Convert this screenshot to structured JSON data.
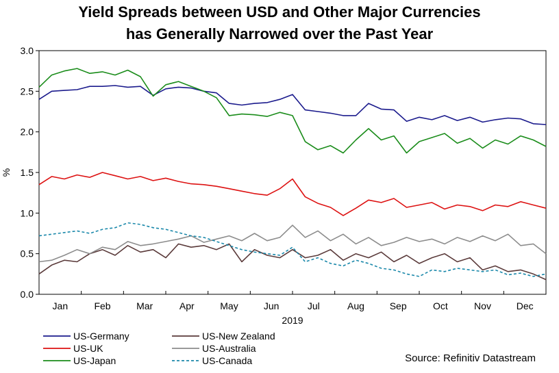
{
  "chart_data": {
    "type": "line",
    "title_line1": "Yield Spreads between USD and Other Major Currencies",
    "title_line2": "has Generally Narrowed over the Past Year",
    "ylabel": "%",
    "xlabel": "2019",
    "ylim": [
      0,
      3.0
    ],
    "yticks": [
      0.0,
      0.5,
      1.0,
      1.5,
      2.0,
      2.5,
      3.0
    ],
    "ytick_labels": [
      "0.0",
      "0.5",
      "1.0",
      "1.5",
      "2.0",
      "2.5",
      "3.0"
    ],
    "months": [
      "Jan",
      "Feb",
      "Mar",
      "Apr",
      "May",
      "Jun",
      "Jul",
      "Aug",
      "Sep",
      "Oct",
      "Nov",
      "Dec"
    ],
    "x_unit": "month index (0 = Jan 1, 12 = Dec 31)",
    "xlim": [
      0,
      12
    ],
    "series": [
      {
        "name": "US-Germany",
        "color": "#1a1a8c",
        "dash": "solid",
        "x": [
          0,
          0.3,
          0.6,
          0.9,
          1.2,
          1.5,
          1.8,
          2.1,
          2.4,
          2.7,
          3.0,
          3.3,
          3.6,
          3.9,
          4.2,
          4.5,
          4.8,
          5.1,
          5.4,
          5.7,
          6.0,
          6.3,
          6.6,
          6.9,
          7.2,
          7.5,
          7.8,
          8.1,
          8.4,
          8.7,
          9.0,
          9.3,
          9.6,
          9.9,
          10.2,
          10.5,
          10.8,
          11.1,
          11.4,
          11.7,
          12.0
        ],
        "y": [
          2.4,
          2.5,
          2.51,
          2.52,
          2.56,
          2.56,
          2.57,
          2.55,
          2.56,
          2.45,
          2.53,
          2.55,
          2.54,
          2.5,
          2.48,
          2.35,
          2.33,
          2.35,
          2.36,
          2.4,
          2.46,
          2.27,
          2.25,
          2.23,
          2.2,
          2.2,
          2.35,
          2.28,
          2.27,
          2.13,
          2.18,
          2.15,
          2.2,
          2.14,
          2.18,
          2.12,
          2.15,
          2.17,
          2.16,
          2.1,
          2.09
        ]
      },
      {
        "name": "US-UK",
        "color": "#dd1111",
        "dash": "solid",
        "x": [
          0,
          0.3,
          0.6,
          0.9,
          1.2,
          1.5,
          1.8,
          2.1,
          2.4,
          2.7,
          3.0,
          3.3,
          3.6,
          3.9,
          4.2,
          4.5,
          4.8,
          5.1,
          5.4,
          5.7,
          6.0,
          6.3,
          6.6,
          6.9,
          7.2,
          7.5,
          7.8,
          8.1,
          8.4,
          8.7,
          9.0,
          9.3,
          9.6,
          9.9,
          10.2,
          10.5,
          10.8,
          11.1,
          11.4,
          11.7,
          12.0
        ],
        "y": [
          1.35,
          1.45,
          1.42,
          1.47,
          1.44,
          1.5,
          1.46,
          1.42,
          1.45,
          1.4,
          1.43,
          1.39,
          1.36,
          1.35,
          1.33,
          1.3,
          1.27,
          1.24,
          1.22,
          1.3,
          1.42,
          1.2,
          1.12,
          1.07,
          0.97,
          1.06,
          1.16,
          1.13,
          1.18,
          1.07,
          1.1,
          1.13,
          1.05,
          1.1,
          1.08,
          1.03,
          1.1,
          1.08,
          1.14,
          1.1,
          1.06
        ]
      },
      {
        "name": "US-Japan",
        "color": "#1a8c1a",
        "dash": "solid",
        "x": [
          0,
          0.3,
          0.6,
          0.9,
          1.2,
          1.5,
          1.8,
          2.1,
          2.4,
          2.7,
          3.0,
          3.3,
          3.6,
          3.9,
          4.2,
          4.5,
          4.8,
          5.1,
          5.4,
          5.7,
          6.0,
          6.3,
          6.6,
          6.9,
          7.2,
          7.5,
          7.8,
          8.1,
          8.4,
          8.7,
          9.0,
          9.3,
          9.6,
          9.9,
          10.2,
          10.5,
          10.8,
          11.1,
          11.4,
          11.7,
          12.0
        ],
        "y": [
          2.55,
          2.7,
          2.75,
          2.78,
          2.72,
          2.74,
          2.7,
          2.76,
          2.68,
          2.44,
          2.58,
          2.62,
          2.56,
          2.5,
          2.42,
          2.2,
          2.22,
          2.21,
          2.19,
          2.24,
          2.2,
          1.88,
          1.78,
          1.83,
          1.74,
          1.9,
          2.04,
          1.9,
          1.95,
          1.74,
          1.88,
          1.93,
          1.98,
          1.86,
          1.92,
          1.8,
          1.9,
          1.85,
          1.95,
          1.9,
          1.82
        ]
      },
      {
        "name": "US-New Zealand",
        "color": "#5a3a3a",
        "dash": "solid",
        "x": [
          0,
          0.3,
          0.6,
          0.9,
          1.2,
          1.5,
          1.8,
          2.1,
          2.4,
          2.7,
          3.0,
          3.3,
          3.6,
          3.9,
          4.2,
          4.5,
          4.8,
          5.1,
          5.4,
          5.7,
          6.0,
          6.3,
          6.6,
          6.9,
          7.2,
          7.5,
          7.8,
          8.1,
          8.4,
          8.7,
          9.0,
          9.3,
          9.6,
          9.9,
          10.2,
          10.5,
          10.8,
          11.1,
          11.4,
          11.7,
          12.0
        ],
        "y": [
          0.25,
          0.36,
          0.42,
          0.4,
          0.5,
          0.55,
          0.48,
          0.6,
          0.52,
          0.55,
          0.45,
          0.62,
          0.58,
          0.6,
          0.55,
          0.62,
          0.4,
          0.55,
          0.48,
          0.45,
          0.55,
          0.45,
          0.48,
          0.55,
          0.42,
          0.5,
          0.45,
          0.52,
          0.4,
          0.48,
          0.38,
          0.45,
          0.5,
          0.4,
          0.45,
          0.3,
          0.35,
          0.28,
          0.3,
          0.25,
          0.18
        ]
      },
      {
        "name": "US-Australia",
        "color": "#8c8c8c",
        "dash": "solid",
        "x": [
          0,
          0.3,
          0.6,
          0.9,
          1.2,
          1.5,
          1.8,
          2.1,
          2.4,
          2.7,
          3.0,
          3.3,
          3.6,
          3.9,
          4.2,
          4.5,
          4.8,
          5.1,
          5.4,
          5.7,
          6.0,
          6.3,
          6.6,
          6.9,
          7.2,
          7.5,
          7.8,
          8.1,
          8.4,
          8.7,
          9.0,
          9.3,
          9.6,
          9.9,
          10.2,
          10.5,
          10.8,
          11.1,
          11.4,
          11.7,
          12.0
        ],
        "y": [
          0.4,
          0.42,
          0.48,
          0.55,
          0.5,
          0.58,
          0.55,
          0.65,
          0.6,
          0.62,
          0.65,
          0.68,
          0.72,
          0.64,
          0.68,
          0.72,
          0.66,
          0.75,
          0.66,
          0.7,
          0.85,
          0.7,
          0.78,
          0.66,
          0.74,
          0.62,
          0.7,
          0.6,
          0.64,
          0.7,
          0.65,
          0.68,
          0.62,
          0.7,
          0.65,
          0.72,
          0.66,
          0.74,
          0.6,
          0.62,
          0.5
        ]
      },
      {
        "name": "US-Canada",
        "color": "#1a88aa",
        "dash": "dashed",
        "x": [
          0,
          0.3,
          0.6,
          0.9,
          1.2,
          1.5,
          1.8,
          2.1,
          2.4,
          2.7,
          3.0,
          3.3,
          3.6,
          3.9,
          4.2,
          4.5,
          4.8,
          5.1,
          5.4,
          5.7,
          6.0,
          6.3,
          6.6,
          6.9,
          7.2,
          7.5,
          7.8,
          8.1,
          8.4,
          8.7,
          9.0,
          9.3,
          9.6,
          9.9,
          10.2,
          10.5,
          10.8,
          11.1,
          11.4,
          11.7,
          12.0
        ],
        "y": [
          0.72,
          0.74,
          0.76,
          0.78,
          0.75,
          0.8,
          0.82,
          0.88,
          0.86,
          0.82,
          0.8,
          0.76,
          0.72,
          0.7,
          0.65,
          0.6,
          0.55,
          0.52,
          0.5,
          0.48,
          0.58,
          0.4,
          0.45,
          0.38,
          0.35,
          0.42,
          0.38,
          0.32,
          0.3,
          0.25,
          0.22,
          0.3,
          0.28,
          0.32,
          0.3,
          0.28,
          0.3,
          0.24,
          0.26,
          0.22,
          0.25
        ]
      }
    ]
  },
  "source": "Source: Refinitiv Datastream"
}
